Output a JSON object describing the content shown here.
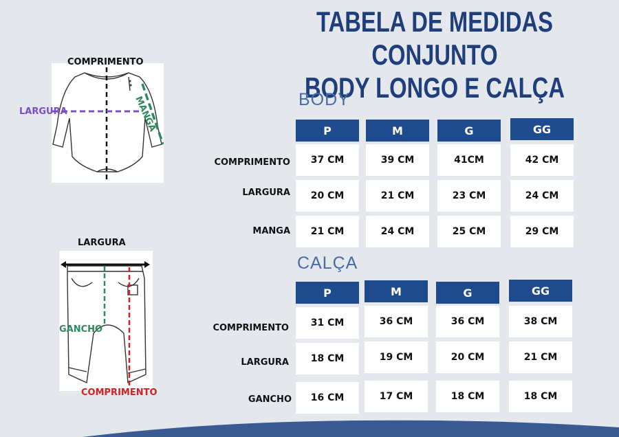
{
  "title_line1": "TABELA DE MEDIDAS CONJUNTO",
  "title_line2": "BODY LONGO E CALÇA",
  "body": {
    "section": "BODY",
    "sizes": [
      "P",
      "M",
      "G",
      "GG"
    ],
    "rows": [
      {
        "label": "COMPRIMENTO",
        "values": [
          "37 CM",
          "39 CM",
          "41CM",
          "42 CM"
        ]
      },
      {
        "label": "LARGURA",
        "values": [
          "20 CM",
          "21 CM",
          "23 CM",
          "24 CM"
        ]
      },
      {
        "label": "MANGA",
        "values": [
          "21 CM",
          "24 CM",
          "25 CM",
          "29 CM"
        ]
      }
    ]
  },
  "calca": {
    "section": "CALÇA",
    "sizes": [
      "P",
      "M",
      "G",
      "GG"
    ],
    "rows": [
      {
        "label": "COMPRIMENTO",
        "values": [
          "31 CM",
          "36 CM",
          "36 CM",
          "38 CM"
        ]
      },
      {
        "label": "LARGURA",
        "values": [
          "18 CM",
          "19 CM",
          "20 CM",
          "21 CM"
        ]
      },
      {
        "label": "GANCHO",
        "values": [
          "16 CM",
          "17 CM",
          "18 CM",
          "18 CM"
        ]
      }
    ]
  },
  "body_illustration": {
    "comprimento": "COMPRIMENTO",
    "largura": "LARGURA",
    "manga": "MANGA"
  },
  "calca_illustration": {
    "largura": "LARGURA",
    "gancho": "GANCHO",
    "comprimento": "COMPRIMENTO"
  },
  "colors": {
    "header": "#1e4a8e",
    "title": "#1f3f7c",
    "section": "#4a6aa4",
    "largura_line": "#7a4fc0",
    "manga_line": "#2e8a5e",
    "gancho_line": "#2e8a5e",
    "comprimento_calca_line": "#d42020"
  }
}
